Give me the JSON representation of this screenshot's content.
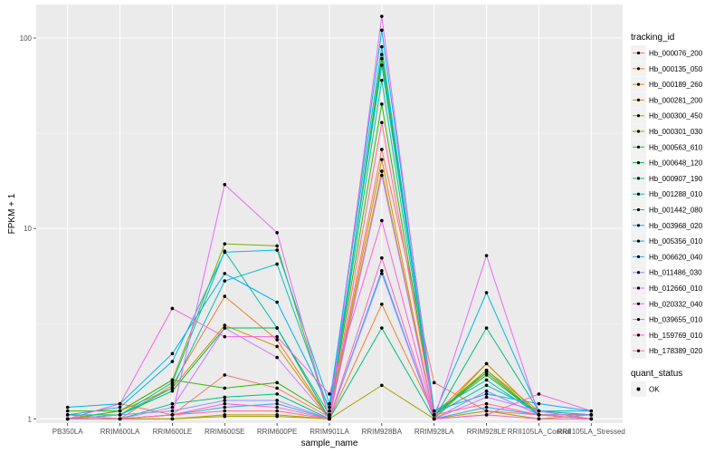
{
  "chart_data": {
    "type": "line",
    "title": "",
    "xlabel": "sample_name",
    "ylabel": "FPKM + 1",
    "yscale": "log",
    "ylim": [
      0.95,
      150
    ],
    "y_ticks": [
      1,
      10,
      100
    ],
    "y_tick_labels": [
      "1",
      "10",
      "100"
    ],
    "grid": true,
    "legend_placement": "right",
    "categories": [
      "PB350LA",
      "RRIM600LA",
      "RRIM600LE",
      "RRIM600SE",
      "RRIM600PE",
      "RRIM901LA",
      "RRIM928BA",
      "RRIM928LA",
      "RRIM928LE",
      "RRII105LA_Control",
      "RRII105LA_Stressed"
    ],
    "legend_title": "tracking_id",
    "status_legend": {
      "title": "quant_status",
      "entries": [
        "OK"
      ]
    },
    "series": [
      {
        "name": "Hb_000076_200",
        "color": "#F8766D",
        "values": [
          1.0,
          1.2,
          1.05,
          1.7,
          1.45,
          1.02,
          26.0,
          1.55,
          1.1,
          1.05,
          1.05
        ]
      },
      {
        "name": "Hb_000135_050",
        "color": "#EA8331",
        "values": [
          1.0,
          1.0,
          1.5,
          4.4,
          2.6,
          1.0,
          4.0,
          1.05,
          1.95,
          1.05,
          1.05
        ]
      },
      {
        "name": "Hb_000189_260",
        "color": "#D89000",
        "values": [
          1.0,
          1.1,
          1.45,
          3.1,
          2.4,
          1.0,
          23.0,
          1.0,
          1.8,
          1.1,
          1.05
        ]
      },
      {
        "name": "Hb_000281_200",
        "color": "#C09B00",
        "values": [
          1.05,
          1.0,
          1.0,
          1.05,
          1.05,
          1.0,
          20.0,
          1.0,
          1.95,
          1.05,
          1.0
        ]
      },
      {
        "name": "Hb_000300_450",
        "color": "#A3A500",
        "values": [
          1.0,
          1.0,
          1.0,
          1.03,
          1.03,
          1.0,
          1.5,
          1.0,
          1.1,
          1.0,
          1.05
        ]
      },
      {
        "name": "Hb_000301_030",
        "color": "#7CAE00",
        "values": [
          1.0,
          1.1,
          1.6,
          8.3,
          8.1,
          1.0,
          82.0,
          1.05,
          1.8,
          1.05,
          1.05
        ]
      },
      {
        "name": "Hb_000563_610",
        "color": "#39B600",
        "values": [
          1.1,
          1.1,
          1.6,
          1.45,
          1.55,
          1.05,
          45.0,
          1.05,
          1.7,
          1.05,
          1.05
        ]
      },
      {
        "name": "Hb_000648_120",
        "color": "#00BB4E",
        "values": [
          1.0,
          1.05,
          1.4,
          3.0,
          3.0,
          1.0,
          78.0,
          1.05,
          1.75,
          1.05,
          1.05
        ]
      },
      {
        "name": "Hb_000907_190",
        "color": "#00BF7D",
        "values": [
          1.0,
          1.0,
          1.2,
          1.3,
          1.35,
          1.0,
          3.0,
          1.0,
          3.0,
          1.1,
          1.0
        ]
      },
      {
        "name": "Hb_001288_010",
        "color": "#00C1A3",
        "values": [
          1.05,
          1.05,
          1.55,
          7.6,
          3.0,
          1.05,
          60.0,
          1.05,
          1.5,
          1.1,
          1.05
        ]
      },
      {
        "name": "Hb_001442_080",
        "color": "#00BFC4",
        "values": [
          1.0,
          1.05,
          1.45,
          5.3,
          6.5,
          1.1,
          72.0,
          1.1,
          1.6,
          1.05,
          1.05
        ]
      },
      {
        "name": "Hb_003968_020",
        "color": "#00BAE0",
        "values": [
          1.05,
          1.15,
          2.0,
          7.5,
          7.7,
          1.2,
          90.0,
          1.05,
          4.6,
          1.1,
          1.1
        ]
      },
      {
        "name": "Hb_005356_010",
        "color": "#00B0F6",
        "values": [
          1.15,
          1.2,
          2.2,
          5.8,
          4.1,
          1.15,
          110.0,
          1.1,
          1.35,
          1.2,
          1.1
        ]
      },
      {
        "name": "Hb_006620_040",
        "color": "#35A2FF",
        "values": [
          1.0,
          1.0,
          1.05,
          1.15,
          1.2,
          1.0,
          6.0,
          1.0,
          1.15,
          1.05,
          1.0
        ]
      },
      {
        "name": "Hb_011486_030",
        "color": "#9590FF",
        "values": [
          1.0,
          1.05,
          1.1,
          1.25,
          1.25,
          1.0,
          5.8,
          1.0,
          1.4,
          1.05,
          1.0
        ]
      },
      {
        "name": "Hb_012660_010",
        "color": "#C77CFF",
        "values": [
          1.0,
          1.0,
          1.15,
          3.0,
          2.1,
          1.0,
          19.0,
          1.0,
          1.3,
          1.1,
          1.0
        ]
      },
      {
        "name": "Hb_020332_040",
        "color": "#E76BF3",
        "values": [
          1.0,
          1.0,
          1.05,
          17.0,
          9.5,
          1.0,
          130.0,
          1.0,
          7.2,
          1.05,
          1.05
        ]
      },
      {
        "name": "Hb_039655_010",
        "color": "#FA62DB",
        "values": [
          1.0,
          1.2,
          3.8,
          2.7,
          2.7,
          1.35,
          11.0,
          1.0,
          1.05,
          1.35,
          1.1
        ]
      },
      {
        "name": "Hb_159769_010",
        "color": "#FF62BC",
        "values": [
          1.0,
          1.0,
          1.05,
          1.2,
          1.15,
          1.0,
          7.0,
          1.0,
          1.05,
          1.0,
          1.0
        ]
      },
      {
        "name": "Hb_178389_020",
        "color": "#FF6C91",
        "values": [
          1.0,
          1.0,
          1.05,
          1.1,
          1.1,
          1.0,
          36.0,
          1.05,
          1.2,
          1.05,
          1.0
        ]
      }
    ]
  }
}
